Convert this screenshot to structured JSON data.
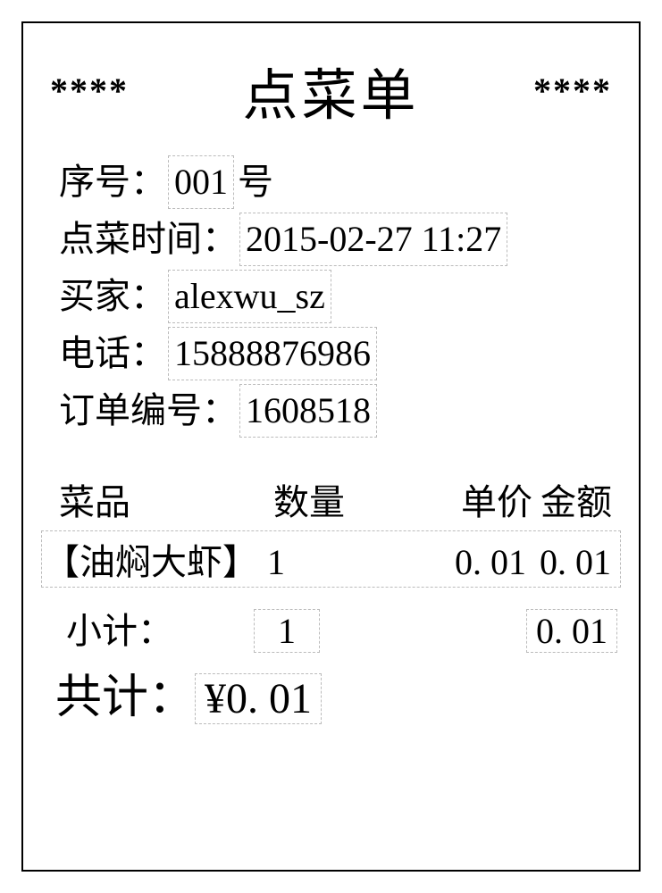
{
  "header": {
    "stars_left": "****",
    "title": "点菜单",
    "stars_right": "****"
  },
  "info": {
    "seq_label": "序号：",
    "seq_value": "001",
    "seq_suffix": " 号",
    "time_label": "点菜时间：",
    "time_value": "2015-02-27   11:27",
    "buyer_label": "买家：",
    "buyer_value": "alexwu_sz",
    "phone_label": "电话：",
    "phone_value": "15888876986",
    "order_label": "订单编号：",
    "order_value": "1608518"
  },
  "columns": {
    "name": "菜品",
    "qty": "数量",
    "unit": "单价",
    "amount": "金额"
  },
  "item": {
    "name": "【油焖大虾】",
    "qty": "1",
    "unit": "0. 01",
    "amount": "0. 01"
  },
  "subtotal": {
    "label": "小计：",
    "qty": "1",
    "amount": "0. 01"
  },
  "total": {
    "label": "共计：",
    "value": "¥0. 01"
  },
  "style": {
    "border_color": "#000000",
    "dashed_color": "#bbbbbb",
    "background": "#ffffff",
    "text_color": "#000000"
  }
}
